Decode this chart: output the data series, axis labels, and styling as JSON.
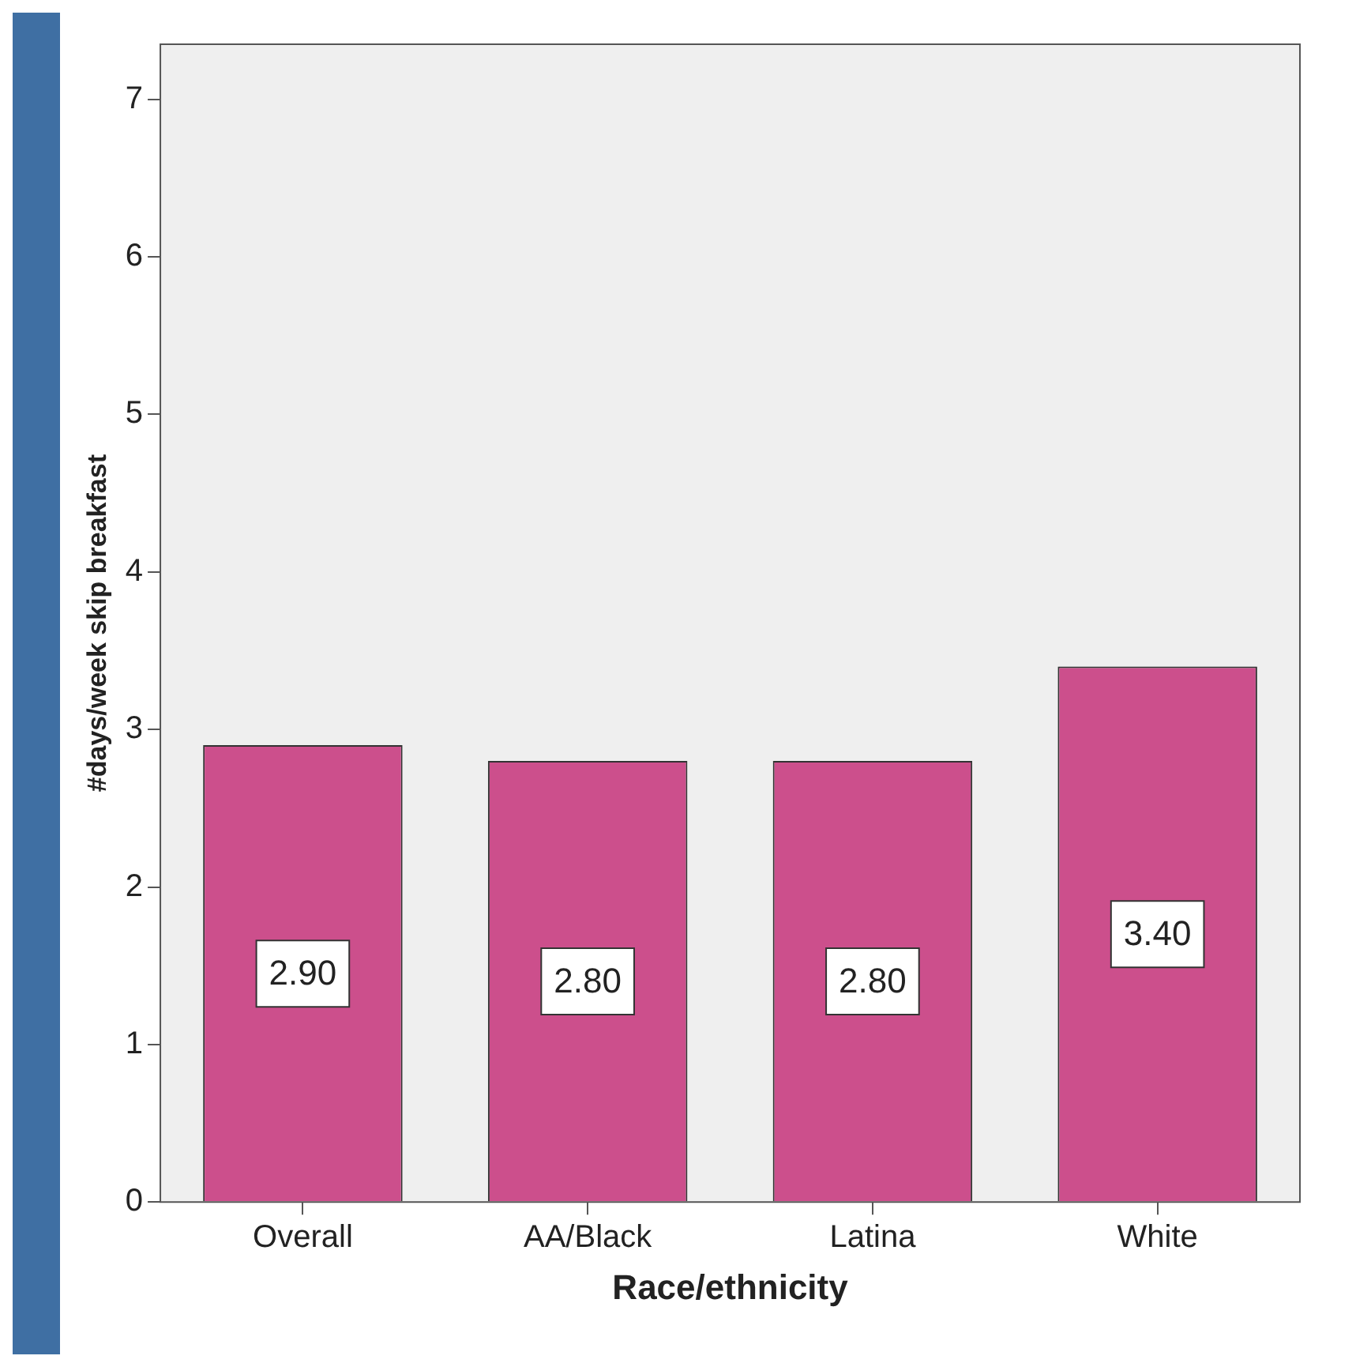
{
  "chart_data": {
    "type": "bar",
    "xlabel": "Race/ethnicity",
    "ylabel": "#days/week skip breakfast",
    "categories": [
      "Overall",
      "AA/Black",
      "Latina",
      "White"
    ],
    "values": [
      2.9,
      2.8,
      2.8,
      3.4
    ],
    "value_labels": [
      "2.90",
      "2.80",
      "2.80",
      "3.40"
    ],
    "color": "#cc4f8c",
    "ylim": [
      0,
      7.35
    ],
    "yticks": [
      0,
      1,
      2,
      3,
      4,
      5,
      6,
      7
    ],
    "grid": false,
    "legend": false
  }
}
